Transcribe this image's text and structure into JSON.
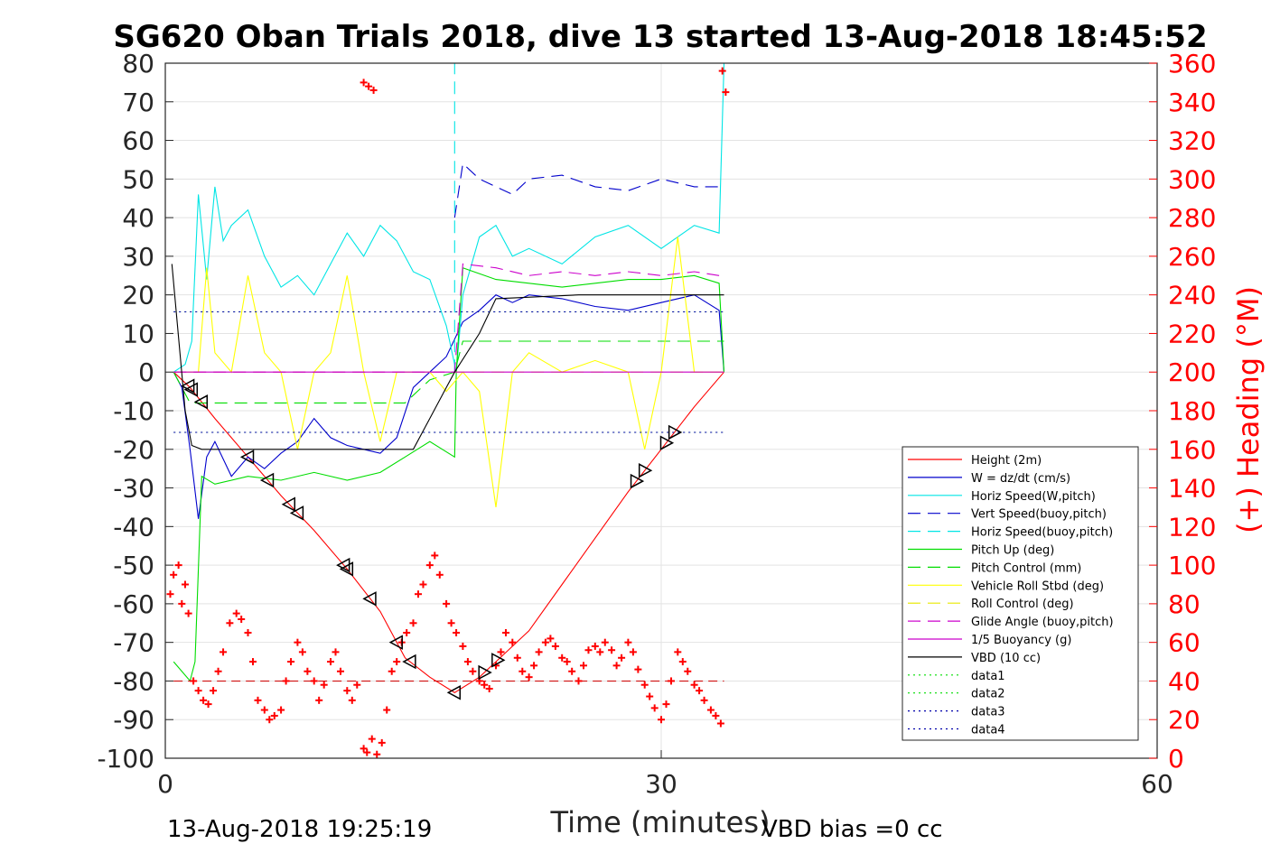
{
  "chart_data": {
    "type": "line",
    "title": "SG620 Oban Trials 2018, dive 13 started 13-Aug-2018 18:45:52",
    "xlabel": "Time (minutes)",
    "ylabel_right": "(+) Heading (°M)",
    "xlim": [
      0,
      60
    ],
    "ylim": [
      -100,
      80
    ],
    "ylim_right": [
      0,
      360
    ],
    "x_ticks": [
      "0",
      "30",
      "60"
    ],
    "y_ticks": [
      "80",
      "70",
      "60",
      "50",
      "40",
      "30",
      "20",
      "10",
      "0",
      "-10",
      "-20",
      "-30",
      "-40",
      "-50",
      "-60",
      "-70",
      "-80",
      "-90",
      "-100"
    ],
    "y_right_ticks": [
      "360",
      "340",
      "320",
      "300",
      "280",
      "260",
      "240",
      "220",
      "200",
      "180",
      "160",
      "140",
      "120",
      "100",
      "80",
      "60",
      "40",
      "20",
      "0"
    ],
    "grid": true,
    "legend_position": "lower-right",
    "footer_left": "13-Aug-2018 19:25:19",
    "footer_right": "VBD bias =0 cc",
    "colors": {
      "height": "#ff0000",
      "w": "#0000cc",
      "horiz_w": "#00e5e5",
      "vert_buoy": "#0000cc",
      "horiz_buoy": "#00e5e5",
      "pitch": "#00dd00",
      "pitch_ctrl": "#00dd00",
      "roll": "#ffff00",
      "roll_ctrl": "#e8e800",
      "glide": "#cc00cc",
      "buoy": "#cc00cc",
      "vbd": "#000000",
      "heading": "#ff0000",
      "data": "#0000aa"
    },
    "legend": [
      {
        "label": "Height (2m)",
        "style": "solid",
        "color": "#ff0000"
      },
      {
        "label": "W = dz/dt (cm/s)",
        "style": "solid",
        "color": "#0000cc"
      },
      {
        "label": "Horiz Speed(W,pitch)",
        "style": "solid",
        "color": "#00e5e5"
      },
      {
        "label": "Vert Speed(buoy,pitch)",
        "style": "dashed",
        "color": "#0000cc"
      },
      {
        "label": "Horiz Speed(buoy,pitch)",
        "style": "dashed",
        "color": "#00e5e5"
      },
      {
        "label": "Pitch Up (deg)",
        "style": "solid",
        "color": "#00dd00"
      },
      {
        "label": "Pitch Control (mm)",
        "style": "dashed",
        "color": "#00dd00"
      },
      {
        "label": "Vehicle Roll Stbd (deg)",
        "style": "solid",
        "color": "#ffff00"
      },
      {
        "label": "Roll Control (deg)",
        "style": "dashed",
        "color": "#e8e800"
      },
      {
        "label": "Glide Angle (buoy,pitch)",
        "style": "dashed",
        "color": "#cc00cc"
      },
      {
        "label": "1/5 Buoyancy (g)",
        "style": "solid",
        "color": "#cc00cc"
      },
      {
        "label": "VBD (10 cc)",
        "style": "solid",
        "color": "#000000"
      },
      {
        "label": "data1",
        "style": "dotted",
        "color": "#00dd00"
      },
      {
        "label": "data2",
        "style": "dotted",
        "color": "#00dd00"
      },
      {
        "label": "data3",
        "style": "dotted",
        "color": "#0000aa"
      },
      {
        "label": "data4",
        "style": "dotted",
        "color": "#0000aa"
      }
    ],
    "series": [
      {
        "name": "Height (2m)",
        "axis": "left",
        "x": [
          0.5,
          1.5,
          3,
          5,
          7,
          9,
          11,
          13,
          14.5,
          16,
          17.5,
          19,
          20.5,
          22,
          24,
          26,
          28,
          30,
          32,
          33.8
        ],
        "y": [
          0,
          -4,
          -12,
          -22,
          -32,
          -41,
          -51,
          -62,
          -74,
          -79,
          -83,
          -79,
          -73,
          -67,
          -55,
          -43,
          -31,
          -20,
          -9,
          0
        ]
      },
      {
        "name": "W = dz/dt (cm/s)",
        "axis": "left",
        "x": [
          0.5,
          1,
          1.5,
          2,
          2.5,
          3,
          4,
          5,
          6,
          7,
          8,
          9,
          10,
          11,
          12,
          13,
          14,
          15,
          16,
          17,
          18,
          19,
          20,
          21,
          22,
          24,
          26,
          28,
          30,
          32,
          33.5,
          33.8
        ],
        "y": [
          0,
          -4,
          -20,
          -38,
          -22,
          -18,
          -27,
          -22,
          -25,
          -21,
          -18,
          -12,
          -17,
          -19,
          -20,
          -21,
          -17,
          -4,
          0,
          4,
          13,
          16,
          20,
          18,
          20,
          19,
          17,
          16,
          18,
          20,
          16,
          0
        ]
      },
      {
        "name": "Horiz Speed(W,pitch)",
        "axis": "left",
        "x": [
          0.5,
          1.2,
          1.6,
          2,
          2.5,
          3,
          3.5,
          4,
          5,
          6,
          7,
          8,
          9,
          10,
          11,
          12,
          13,
          14,
          15,
          16,
          17,
          17.6,
          18,
          19,
          20,
          21,
          22,
          24,
          26,
          28,
          30,
          32,
          33.5,
          33.8
        ],
        "y": [
          0,
          2,
          8,
          46,
          24,
          48,
          34,
          38,
          42,
          30,
          22,
          25,
          20,
          28,
          36,
          30,
          38,
          34,
          26,
          24,
          12,
          0,
          20,
          35,
          38,
          30,
          32,
          28,
          35,
          38,
          32,
          38,
          36,
          80
        ]
      },
      {
        "name": "Vert Speed(buoy,pitch)",
        "axis": "left",
        "x": [
          17.5,
          18,
          19,
          20,
          21,
          22,
          24,
          26,
          28,
          30,
          32,
          33.5
        ],
        "y": [
          40,
          54,
          50,
          48,
          46,
          50,
          51,
          48,
          47,
          50,
          48,
          48
        ]
      },
      {
        "name": "Horiz Speed(buoy,pitch)",
        "axis": "left",
        "x": [
          17.5,
          17.5
        ],
        "y": [
          0,
          80
        ]
      },
      {
        "name": "Pitch Up (deg)",
        "axis": "left",
        "x": [
          0.5,
          1.5,
          1.8,
          2.2,
          3,
          5,
          7,
          9,
          11,
          13,
          14.5,
          16,
          17.5,
          17.6,
          18,
          20,
          22,
          24,
          26,
          28,
          30,
          32,
          33.5,
          33.8
        ],
        "y": [
          -75,
          -80,
          -75,
          -27,
          -29,
          -27,
          -28,
          -26,
          -28,
          -26,
          -22,
          -18,
          -22,
          0,
          27,
          24,
          23,
          22,
          23,
          24,
          24,
          25,
          23,
          0
        ]
      },
      {
        "name": "Pitch Control (mm)",
        "axis": "left",
        "x": [
          0.5,
          1.5,
          14.5,
          16,
          17.5,
          18,
          33.8
        ],
        "y": [
          0,
          -8,
          -8,
          -2,
          0,
          8,
          8
        ]
      },
      {
        "name": "Vehicle Roll Stbd (deg)",
        "axis": "left",
        "x": [
          0.5,
          2,
          2.5,
          3,
          4,
          5,
          6,
          7,
          8,
          9,
          10,
          11,
          12,
          13,
          14,
          15,
          16,
          17,
          18,
          19,
          20,
          21,
          22,
          24,
          26,
          28,
          29,
          30,
          31,
          32,
          33.8
        ],
        "y": [
          0,
          0,
          27,
          5,
          0,
          25,
          5,
          0,
          -20,
          0,
          5,
          25,
          0,
          -18,
          0,
          0,
          0,
          -5,
          0,
          -5,
          -35,
          0,
          5,
          0,
          3,
          0,
          -20,
          0,
          35,
          0,
          0
        ]
      },
      {
        "name": "Roll Control (deg)",
        "axis": "left",
        "x": [
          0.5,
          33.8
        ],
        "y": [
          0,
          0
        ]
      },
      {
        "name": "Glide Angle (buoy,pitch)",
        "axis": "left",
        "x": [
          0.5,
          17.5,
          18,
          20,
          22,
          24,
          26,
          28,
          30,
          32,
          33.5
        ],
        "y": [
          0,
          0,
          28,
          27,
          25,
          26,
          25,
          26,
          25,
          26,
          25
        ]
      },
      {
        "name": "1/5 Buoyancy (g)",
        "axis": "left",
        "x": [
          0.5,
          17.5,
          33.8
        ],
        "y": [
          0,
          0,
          0
        ]
      },
      {
        "name": "VBD (10 cc)",
        "axis": "left",
        "x": [
          0.4,
          1.2,
          1.6,
          2.2,
          3,
          15,
          16,
          17,
          17.5,
          19,
          20,
          25,
          33.8
        ],
        "y": [
          28,
          -10,
          -19,
          -20,
          -20,
          -20,
          -12,
          -4,
          0,
          10,
          19,
          20,
          20
        ]
      },
      {
        "name": "data1",
        "axis": "left",
        "x": [
          0.5,
          33.8
        ],
        "y": [
          15.6,
          15.6
        ]
      },
      {
        "name": "data2",
        "axis": "left",
        "x": [
          0.5,
          33.8
        ],
        "y": [
          -15.6,
          -15.6
        ]
      },
      {
        "name": "data3",
        "axis": "left",
        "x": [
          0.5,
          33.8
        ],
        "y": [
          15.6,
          15.6
        ]
      },
      {
        "name": "data4",
        "axis": "left",
        "x": [
          0.5,
          33.8
        ],
        "y": [
          -15.6,
          -15.6
        ]
      }
    ],
    "heading_points": {
      "name": "(+) Heading (°M)",
      "axis": "right",
      "x": [
        0.3,
        0.5,
        0.8,
        1.0,
        1.2,
        1.4,
        1.7,
        2.0,
        2.3,
        2.6,
        2.9,
        3.2,
        3.5,
        3.9,
        4.3,
        4.6,
        5.0,
        5.3,
        5.6,
        6.0,
        6.3,
        6.6,
        7.0,
        7.3,
        7.6,
        8.0,
        8.3,
        8.6,
        9.0,
        9.3,
        9.6,
        10.0,
        10.3,
        10.6,
        11.0,
        11.3,
        11.6,
        12.0,
        12.2,
        12.5,
        12.8,
        13.1,
        13.4,
        13.7,
        14.0,
        14.3,
        14.6,
        15.0,
        15.3,
        15.6,
        16.0,
        16.3,
        16.6,
        17.0,
        17.3,
        17.6,
        18.0,
        18.3,
        18.6,
        19.0,
        19.3,
        19.6,
        20.0,
        20.3,
        20.6,
        21.0,
        21.3,
        21.6,
        22.0,
        22.3,
        22.6,
        23.0,
        23.3,
        23.6,
        24.0,
        24.3,
        24.6,
        25.0,
        25.3,
        25.6,
        26.0,
        26.3,
        26.6,
        27.0,
        27.3,
        27.6,
        28.0,
        28.3,
        28.6,
        29.0,
        29.3,
        29.6,
        30.0,
        30.3,
        30.6,
        31.0,
        31.3,
        31.6,
        32.0,
        32.3,
        32.6,
        33.0,
        33.3,
        33.6,
        12.0,
        12.3,
        12.6,
        33.7,
        33.9
      ],
      "y": [
        85,
        95,
        100,
        80,
        90,
        75,
        40,
        35,
        30,
        28,
        35,
        45,
        55,
        70,
        75,
        72,
        65,
        50,
        30,
        25,
        20,
        22,
        25,
        40,
        50,
        60,
        55,
        45,
        40,
        30,
        38,
        50,
        55,
        45,
        35,
        30,
        38,
        5,
        3,
        10,
        2,
        8,
        25,
        45,
        50,
        60,
        65,
        70,
        85,
        90,
        100,
        105,
        95,
        80,
        70,
        65,
        58,
        50,
        45,
        40,
        38,
        36,
        48,
        55,
        65,
        60,
        52,
        45,
        42,
        48,
        55,
        60,
        62,
        58,
        52,
        50,
        45,
        40,
        48,
        56,
        58,
        55,
        60,
        56,
        48,
        52,
        60,
        55,
        46,
        38,
        32,
        26,
        20,
        28,
        40,
        55,
        50,
        45,
        38,
        35,
        30,
        25,
        22,
        18,
        350,
        348,
        346,
        356,
        345
      ]
    }
  }
}
